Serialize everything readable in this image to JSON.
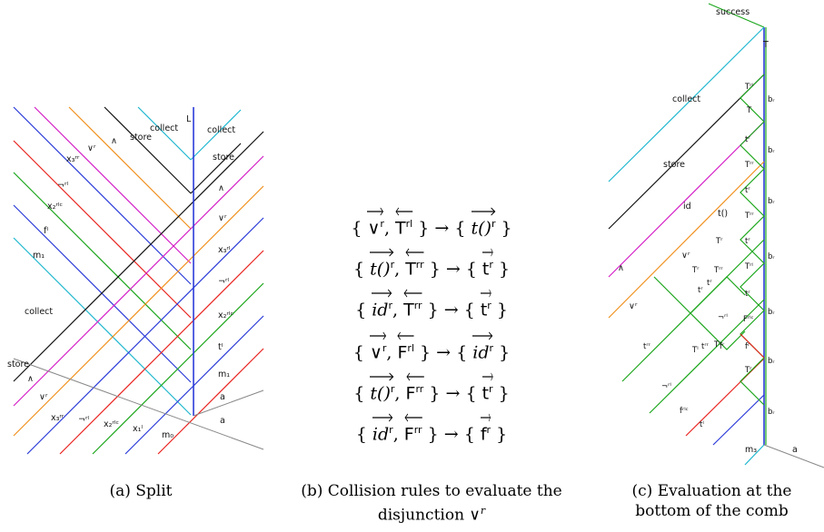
{
  "captions": {
    "a": "(a) Split",
    "b_line1": "(b) Collision rules to evaluate the",
    "b_line2": "disjunction ∨",
    "b_sup": "r",
    "c_line1": "(c) Evaluation at the",
    "c_line2": "bottom of the comb"
  },
  "panel_a": {
    "top_right": {
      "store": "store",
      "collect1": "collect",
      "split": "L",
      "collect2": "collect"
    },
    "store_right": "store",
    "left": {
      "x3rr": "x₃ʳʳ",
      "vr_top": "∨ʳ",
      "and1": "∧",
      "neg_rl": "¬ʳˡ",
      "x2rlc": "x₂ʳˡᶜ",
      "fl": "fˡ",
      "m1": "m₁",
      "collect": "collect",
      "store": "store",
      "and2": "∧",
      "vr_bot": "∨ʳ"
    },
    "right": {
      "and": "∧",
      "vr": "∨ʳ",
      "x3rl": "x₃ʳˡ",
      "neg_rl": "¬ʳˡ",
      "x2rlc": "x₂ʳˡᶜ",
      "tl": "tˡ",
      "m1": "m₁",
      "a1": "a",
      "a2": "a"
    },
    "bottom": {
      "x3rr": "x₃ʳʳ",
      "neg_rl": "¬ʳˡ",
      "x2rlc": "x₂ʳˡᶜ",
      "x1l": "x₁ˡ",
      "m0": "m₀"
    }
  },
  "rules": [
    {
      "l1": "∨",
      "l1s": "r",
      "l1sf": true,
      "l2": "T",
      "l2s": "rl",
      "r": "t()",
      "rs": "r",
      "rsf": false
    },
    {
      "l1": "t()",
      "l1s": "r",
      "l1sf": false,
      "l2": "T",
      "l2s": "rr",
      "r": "t",
      "rs": "r",
      "rsf": true
    },
    {
      "l1": "id",
      "l1s": "r",
      "l1sf": false,
      "l2": "T",
      "l2s": "rr",
      "r": "t",
      "rs": "r",
      "rsf": true
    },
    {
      "l1": "∨",
      "l1s": "r",
      "l1sf": true,
      "l2": "F",
      "l2s": "rl",
      "r": "id",
      "rs": "r",
      "rsf": false
    },
    {
      "l1": "t()",
      "l1s": "r",
      "l1sf": false,
      "l2": "F",
      "l2s": "rr",
      "r": "t",
      "rs": "r",
      "rsf": true
    },
    {
      "l1": "id",
      "l1s": "r",
      "l1sf": false,
      "l2": "F",
      "l2s": "rr",
      "r": "f",
      "rs": "r",
      "rsf": true
    }
  ],
  "panel_c": {
    "success": "success",
    "T": "T",
    "collect": "collect",
    "store": "store",
    "id": "id",
    "t_call": "t()",
    "vr_mid": "∨ʳ",
    "and": "∧",
    "vr_low": "∨ʳ",
    "b_labels": [
      "bᵣ",
      "bᵣ",
      "bᵣ",
      "bᵣ",
      "bᵣ",
      "bᵣ",
      "bᵣ"
    ],
    "right_tokens": [
      "Tʳˡ",
      "T",
      "tʳ",
      "Tʳʳ",
      "tʳ",
      "Tʳʳ",
      "tʳ",
      "Tʳˡ",
      "tʳ",
      "Fʳˡᶜ",
      "fʳ",
      "Tʳ"
    ],
    "mid_tokens": [
      "Tʳ",
      "Tʳʳ",
      "tʳ",
      "Tʳ",
      "tʳ",
      "¬ʳˡ",
      "fʳ",
      "Tʳ",
      "tʳʳ",
      "Tˡ"
    ],
    "left_tokens": [
      "tʳʳ",
      "¬ʳˡ",
      "fʳˡᶜ",
      "tˡ"
    ],
    "bottom": {
      "m3": "m₃",
      "a": "a"
    }
  },
  "colors": {
    "blue": "#2b3bd8",
    "red": "#e8231f",
    "green": "#1ba61b",
    "orange": "#f0901c",
    "magenta": "#d41fc7",
    "cyan": "#1fb7cf",
    "black": "#111111",
    "gray": "#888888"
  }
}
